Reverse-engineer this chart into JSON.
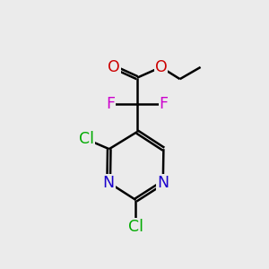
{
  "background_color": "#ebebeb",
  "bond_color": "#000000",
  "bond_width": 1.8,
  "atom_colors": {
    "C": "#000000",
    "N": "#1a00cc",
    "O": "#cc0000",
    "F": "#cc00cc",
    "Cl": "#00aa00"
  },
  "font_size": 12.5,
  "figsize": [
    3.0,
    3.0
  ],
  "dpi": 100,
  "xlim": [
    0,
    10
  ],
  "ylim": [
    0,
    10
  ]
}
